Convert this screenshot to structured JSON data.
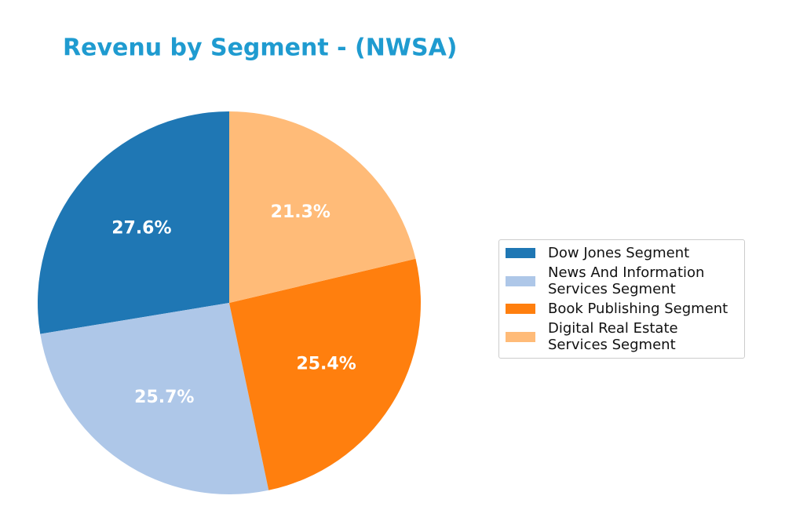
{
  "chart_data": {
    "type": "pie",
    "title": "Revenu by Segment - (NWSA)",
    "categories": [
      "Dow Jones Segment",
      "News And Information\nServices Segment",
      "Book Publishing Segment",
      "Digital Real Estate\nServices Segment"
    ],
    "values": [
      27.6,
      25.7,
      25.4,
      21.3
    ],
    "value_labels": [
      "27.6%",
      "25.7%",
      "25.4%",
      "21.3%"
    ],
    "colors": [
      "#1f77b4",
      "#aec7e8",
      "#ff7f0e",
      "#ffbb78"
    ],
    "legend": "right"
  }
}
